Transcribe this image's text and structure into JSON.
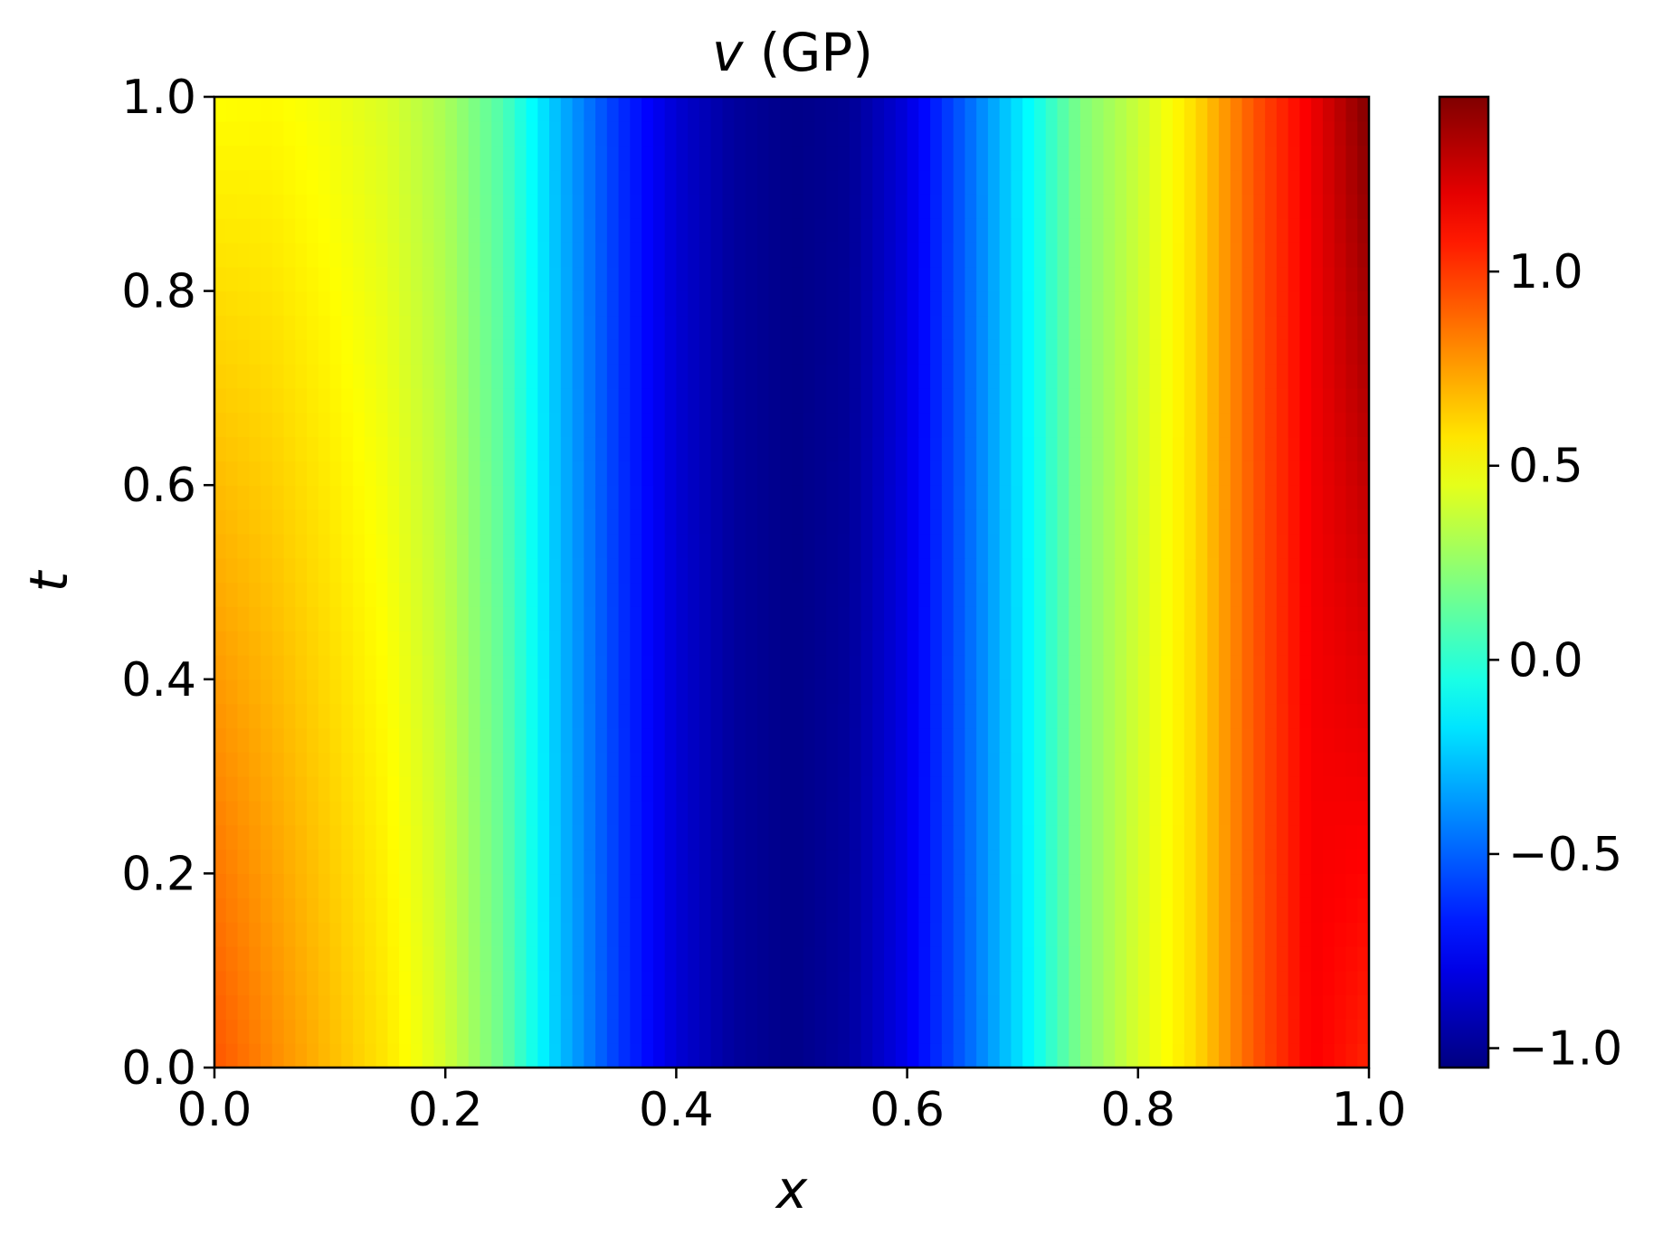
{
  "chart_data": {
    "type": "heatmap",
    "title": {
      "symbol": "v",
      "suffix": " (GP)"
    },
    "xlabel": "x",
    "ylabel": "t",
    "xlim": [
      0.0,
      1.0
    ],
    "ylim": [
      0.0,
      1.0
    ],
    "x_ticks": [
      {
        "value": 0.0,
        "label": "0.0"
      },
      {
        "value": 0.2,
        "label": "0.2"
      },
      {
        "value": 0.4,
        "label": "0.4"
      },
      {
        "value": 0.6,
        "label": "0.6"
      },
      {
        "value": 0.8,
        "label": "0.8"
      },
      {
        "value": 1.0,
        "label": "1.0"
      }
    ],
    "y_ticks": [
      {
        "value": 0.0,
        "label": "0.0"
      },
      {
        "value": 0.2,
        "label": "0.2"
      },
      {
        "value": 0.4,
        "label": "0.4"
      },
      {
        "value": 0.6,
        "label": "0.6"
      },
      {
        "value": 0.8,
        "label": "0.8"
      },
      {
        "value": 1.0,
        "label": "1.0"
      }
    ],
    "colormap": "jet",
    "colorbar": {
      "vmin": -1.05,
      "vmax": 1.45,
      "ticks": [
        {
          "value": -1.0,
          "label": "−1.0"
        },
        {
          "value": -0.5,
          "label": "−0.5"
        },
        {
          "value": 0.0,
          "label": "0.0"
        },
        {
          "value": 0.5,
          "label": "0.5"
        },
        {
          "value": 1.0,
          "label": "1.0"
        }
      ]
    },
    "grid": false,
    "profile_x": [
      0.0,
      0.05,
      0.1,
      0.15,
      0.2,
      0.25,
      0.3,
      0.35,
      0.4,
      0.45,
      0.5,
      0.55,
      0.6,
      0.65,
      0.7,
      0.75,
      0.8,
      0.85,
      0.9,
      0.95,
      1.0
    ],
    "profile_t0": [
      0.93,
      0.8,
      0.68,
      0.57,
      0.4,
      0.15,
      -0.27,
      -0.6,
      -0.84,
      -0.98,
      -1.03,
      -0.97,
      -0.78,
      -0.5,
      -0.17,
      0.2,
      0.42,
      0.6,
      0.92,
      1.15,
      1.05
    ],
    "profile_t1": [
      0.51,
      0.52,
      0.48,
      0.42,
      0.3,
      0.08,
      -0.3,
      -0.62,
      -0.85,
      -0.98,
      -1.03,
      -1.0,
      -0.82,
      -0.5,
      -0.15,
      0.2,
      0.38,
      0.6,
      0.93,
      1.17,
      1.45
    ]
  }
}
